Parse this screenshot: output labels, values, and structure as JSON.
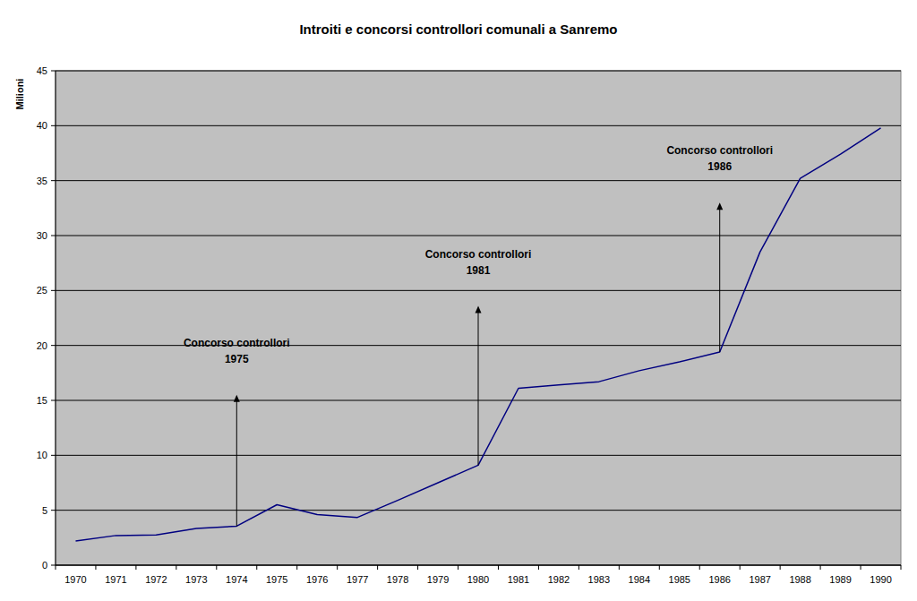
{
  "chart_data": {
    "type": "line",
    "title": "Introiti e concorsi controllori comunali a Sanremo",
    "y_label": "Milioni",
    "categories": [
      "1970",
      "1971",
      "1972",
      "1973",
      "1974",
      "1975",
      "1976",
      "1977",
      "1978",
      "1979",
      "1980",
      "1981",
      "1982",
      "1983",
      "1984",
      "1985",
      "1986",
      "1987",
      "1988",
      "1989",
      "1990"
    ],
    "values": [
      2.2,
      2.7,
      2.75,
      3.35,
      3.55,
      5.5,
      4.6,
      4.35,
      5.9,
      7.5,
      9.1,
      16.1,
      16.4,
      16.7,
      17.7,
      18.5,
      19.4,
      28.5,
      35.2,
      37.4,
      39.8
    ],
    "color": "#000080",
    "ylim": [
      0,
      45
    ],
    "yticks": [
      0,
      5,
      10,
      15,
      20,
      25,
      30,
      35,
      40,
      45
    ],
    "grid": true,
    "annotations": [
      {
        "text": "Concorso controllori",
        "year": "1975",
        "x": "1974",
        "y": 15.5
      },
      {
        "text": "Concorso controllori",
        "year": "1981",
        "x": "1980",
        "y": 23.6
      },
      {
        "text": "Concorso controllori",
        "year": "1986",
        "x": "1986",
        "y": 33
      }
    ]
  }
}
